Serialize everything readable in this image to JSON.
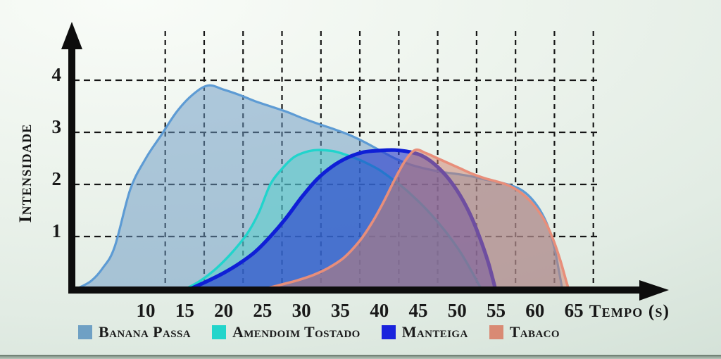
{
  "chart_data": {
    "type": "area",
    "title": "",
    "xlabel": "Tempo (s)",
    "ylabel": "Intensidade",
    "x_unit": "seconds",
    "xlim": [
      0,
      72
    ],
    "ylim": [
      0,
      4.8
    ],
    "x_ticks": [
      10,
      15,
      20,
      25,
      30,
      35,
      40,
      45,
      50,
      55,
      60,
      65
    ],
    "y_ticks": [
      1,
      2,
      3,
      4
    ],
    "grid": {
      "style": "dashed",
      "color": "#161616",
      "vertical_at": [
        12.5,
        17.5,
        22.5,
        27.5,
        32.5,
        37.5,
        42.5,
        47.5,
        52.5,
        57.5,
        62.5,
        67.5
      ],
      "horizontal_at": [
        1,
        2,
        3,
        4
      ]
    },
    "axis_color": "#0d0d0d",
    "background_color": "#e9f1ea",
    "legend_position": "bottom",
    "series": [
      {
        "name": "Banana Passa",
        "legend_color": "#6fa0c4",
        "stroke": "#5d9bd4",
        "stroke_width": 3.2,
        "fill": "#6d9cc6",
        "fill_opacity": 0.52,
        "peak": {
          "t": 18,
          "v": 3.9
        },
        "points": [
          [
            1.2,
            0
          ],
          [
            3,
            0.15
          ],
          [
            4.5,
            0.4
          ],
          [
            6,
            0.8
          ],
          [
            8,
            1.9
          ],
          [
            10,
            2.5
          ],
          [
            12,
            2.95
          ],
          [
            14,
            3.4
          ],
          [
            16,
            3.72
          ],
          [
            18,
            3.9
          ],
          [
            20,
            3.82
          ],
          [
            22,
            3.72
          ],
          [
            24,
            3.6
          ],
          [
            26,
            3.5
          ],
          [
            28,
            3.4
          ],
          [
            30,
            3.28
          ],
          [
            32,
            3.17
          ],
          [
            34,
            3.07
          ],
          [
            36,
            2.96
          ],
          [
            38,
            2.82
          ],
          [
            40,
            2.66
          ],
          [
            42,
            2.5
          ],
          [
            44,
            2.38
          ],
          [
            46,
            2.3
          ],
          [
            48,
            2.24
          ],
          [
            50,
            2.2
          ],
          [
            52,
            2.15
          ],
          [
            54,
            2.08
          ],
          [
            56,
            2.02
          ],
          [
            57.5,
            1.95
          ],
          [
            58.6,
            1.86
          ],
          [
            59.6,
            1.72
          ],
          [
            60.6,
            1.52
          ],
          [
            61.6,
            1.22
          ],
          [
            62.5,
            0.78
          ],
          [
            63.1,
            0.32
          ],
          [
            63.5,
            0
          ]
        ]
      },
      {
        "name": "Amendoim Tostado",
        "legend_color": "#23d5cb",
        "stroke": "#21d4cc",
        "stroke_width": 3.4,
        "fill": "#3fd1c9",
        "fill_opacity": 0.42,
        "peak": {
          "t": 32,
          "v": 2.66
        },
        "points": [
          [
            15.2,
            0
          ],
          [
            17,
            0.15
          ],
          [
            19,
            0.38
          ],
          [
            21,
            0.68
          ],
          [
            23,
            1.05
          ],
          [
            24.5,
            1.45
          ],
          [
            26,
            2.0
          ],
          [
            27.5,
            2.3
          ],
          [
            29,
            2.52
          ],
          [
            30.5,
            2.62
          ],
          [
            32,
            2.66
          ],
          [
            34,
            2.64
          ],
          [
            35.5,
            2.58
          ],
          [
            37,
            2.5
          ],
          [
            38.5,
            2.4
          ],
          [
            40,
            2.28
          ],
          [
            41.5,
            2.12
          ],
          [
            43,
            1.95
          ],
          [
            44.5,
            1.75
          ],
          [
            46,
            1.53
          ],
          [
            47.5,
            1.28
          ],
          [
            49,
            1.0
          ],
          [
            50.5,
            0.68
          ],
          [
            51.8,
            0.35
          ],
          [
            52.7,
            0.1
          ],
          [
            53.1,
            0
          ]
        ]
      },
      {
        "name": "Manteiga",
        "legend_color": "#1a23dd",
        "stroke": "#0f1fd6",
        "stroke_width": 5.2,
        "fill": "#2638cd",
        "fill_opacity": 0.6,
        "peak": {
          "t": 42,
          "v": 2.66
        },
        "points": [
          [
            15.8,
            0
          ],
          [
            18,
            0.15
          ],
          [
            20,
            0.3
          ],
          [
            22,
            0.48
          ],
          [
            24,
            0.7
          ],
          [
            26,
            1.0
          ],
          [
            28,
            1.35
          ],
          [
            30,
            1.75
          ],
          [
            32,
            2.1
          ],
          [
            34,
            2.35
          ],
          [
            36,
            2.52
          ],
          [
            38,
            2.62
          ],
          [
            40,
            2.65
          ],
          [
            42,
            2.66
          ],
          [
            44,
            2.62
          ],
          [
            45.5,
            2.55
          ],
          [
            47,
            2.4
          ],
          [
            48.5,
            2.18
          ],
          [
            50,
            1.88
          ],
          [
            51.5,
            1.48
          ],
          [
            52.8,
            1.02
          ],
          [
            54,
            0.5
          ],
          [
            54.9,
            0
          ]
        ]
      },
      {
        "name": "Tabaco",
        "legend_color": "#d98a74",
        "stroke": "#e88e7a",
        "stroke_width": 3.6,
        "fill": "#cd7e6a",
        "fill_opacity": 0.5,
        "peak": {
          "t": 44.6,
          "v": 2.66
        },
        "points": [
          [
            25.4,
            0
          ],
          [
            27.5,
            0.08
          ],
          [
            29.5,
            0.16
          ],
          [
            31.5,
            0.26
          ],
          [
            33.5,
            0.4
          ],
          [
            35.5,
            0.6
          ],
          [
            37.5,
            0.92
          ],
          [
            39,
            1.25
          ],
          [
            40.5,
            1.65
          ],
          [
            42,
            2.1
          ],
          [
            43.3,
            2.45
          ],
          [
            44.6,
            2.66
          ],
          [
            46,
            2.6
          ],
          [
            47.5,
            2.5
          ],
          [
            49,
            2.4
          ],
          [
            50.5,
            2.3
          ],
          [
            52,
            2.2
          ],
          [
            53.5,
            2.12
          ],
          [
            55,
            2.06
          ],
          [
            56.3,
            2.0
          ],
          [
            57.4,
            1.92
          ],
          [
            58.4,
            1.82
          ],
          [
            59.4,
            1.68
          ],
          [
            60.4,
            1.5
          ],
          [
            61.4,
            1.26
          ],
          [
            62.4,
            0.92
          ],
          [
            63.3,
            0.52
          ],
          [
            64,
            0.15
          ],
          [
            64.3,
            0
          ]
        ]
      }
    ]
  }
}
